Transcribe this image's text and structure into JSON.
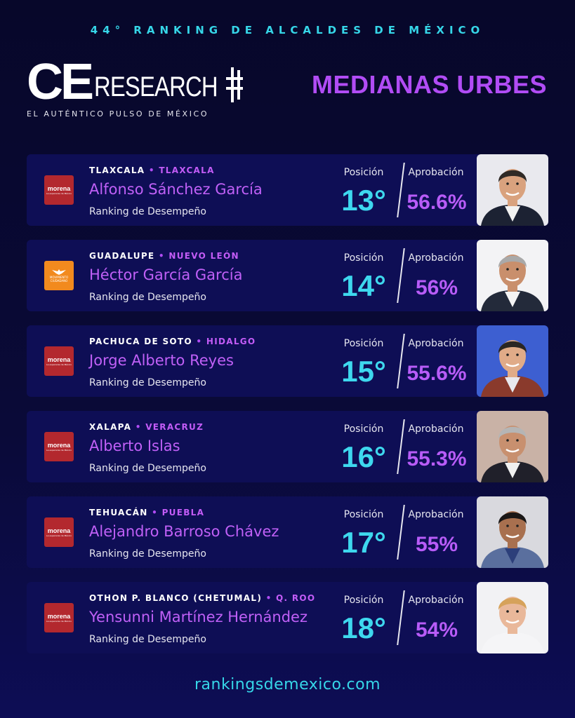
{
  "header": {
    "top_title": "44° RANKING DE ALCALDES DE MÉXICO",
    "logo_ce": "CE",
    "logo_research": "RESEARCH",
    "logo_tagline": "EL AUTÉNTICO PULSO DE MÉXICO",
    "section_title": "MEDIANAS URBES"
  },
  "labels": {
    "position": "Posición",
    "approval": "Aprobación",
    "ranking": "Ranking de Desempeño"
  },
  "mayors": [
    {
      "city": "TLAXCALA",
      "state": "TLAXCALA",
      "name": "Alfonso Sánchez García",
      "party": "morena",
      "position": "13°",
      "approval": "56.6%"
    },
    {
      "city": "GUADALUPE",
      "state": "NUEVO LEÓN",
      "name": "Héctor García García",
      "party": "mc",
      "position": "14°",
      "approval": "56%"
    },
    {
      "city": "PACHUCA DE SOTO",
      "state": "HIDALGO",
      "name": "Jorge Alberto Reyes",
      "party": "morena",
      "position": "15°",
      "approval": "55.6%"
    },
    {
      "city": "XALAPA",
      "state": "VERACRUZ",
      "name": "Alberto Islas",
      "party": "morena",
      "position": "16°",
      "approval": "55.3%"
    },
    {
      "city": "TEHUACÁN",
      "state": "PUEBLA",
      "name": "Alejandro Barroso Chávez",
      "party": "morena",
      "position": "17°",
      "approval": "55%"
    },
    {
      "city": "OTHON P. BLANCO (CHETUMAL)",
      "state": "Q. ROO",
      "name": "Yensunni Martínez Hernández",
      "party": "morena",
      "position": "18°",
      "approval": "54%"
    }
  ],
  "party_logos": {
    "morena": {
      "text": "morena",
      "subtitle": "La esperanza de México",
      "color": "#b3282e"
    },
    "mc": {
      "text": "MOVIMIENTO CIUDADANO",
      "color": "#f28a1e"
    }
  },
  "photos": [
    {
      "bg": "#e9e9ee",
      "skin": "#d9a27e",
      "hair": "#2f2a26",
      "suit": "#1c2233",
      "shirt": "#f2f2f2"
    },
    {
      "bg": "#f3f3f5",
      "skin": "#c98f6c",
      "hair": "#a9a9a9",
      "suit": "#232a3a",
      "shirt": "#f4f4f4"
    },
    {
      "bg": "#3d5fd1",
      "skin": "#e0ab88",
      "hair": "#2a2623",
      "suit": "#8a3a2c",
      "shirt": "#e8e8ee"
    },
    {
      "bg": "#c9b2a6",
      "skin": "#c8906f",
      "hair": "#b5b5b5",
      "suit": "#20202a",
      "shirt": "#f0f0f0"
    },
    {
      "bg": "#d9d9de",
      "skin": "#a8704f",
      "hair": "#1a1716",
      "suit": "#5a6f9e",
      "shirt": "#2c3f7a"
    },
    {
      "bg": "#f2f2f4",
      "skin": "#e9b89a",
      "hair": "#d6a25a",
      "suit": "#f5f5f7",
      "shirt": "#f5f5f7"
    }
  ],
  "footer": {
    "url": "rankingsdemexico.com"
  },
  "colors": {
    "accent_cyan": "#36d6e8",
    "accent_purple": "#b14cf5",
    "card_bg": "#0e0e55"
  }
}
